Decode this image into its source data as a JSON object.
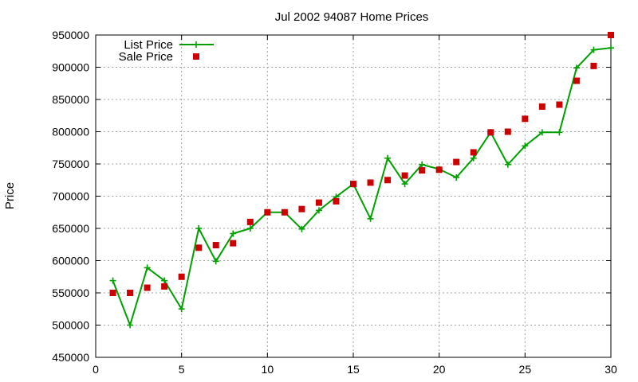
{
  "chart_data": {
    "type": "line",
    "title": "Jul 2002 94087 Home Prices",
    "xlabel": "",
    "ylabel": "Price",
    "xlim": [
      0,
      30
    ],
    "ylim": [
      450000,
      950000
    ],
    "xticks": [
      "0",
      "5",
      "10",
      "15",
      "20",
      "25",
      "30"
    ],
    "yticks": [
      "450000",
      "500000",
      "550000",
      "600000",
      "650000",
      "700000",
      "750000",
      "800000",
      "850000",
      "900000",
      "950000"
    ],
    "grid": true,
    "legend_position": "top-left",
    "colors": {
      "list": "#00a000",
      "sale": "#cc0000"
    },
    "series": [
      {
        "name": "List Price",
        "style": "line-with-plus-markers",
        "x": [
          1,
          2,
          3,
          4,
          5,
          6,
          7,
          8,
          9,
          10,
          11,
          12,
          13,
          14,
          15,
          16,
          17,
          18,
          19,
          20,
          21,
          22,
          23,
          24,
          25,
          26,
          27,
          28,
          29,
          30
        ],
        "values": [
          569000,
          500000,
          589000,
          569000,
          525000,
          650000,
          599000,
          642000,
          650000,
          675000,
          675000,
          649000,
          678000,
          699000,
          719000,
          665000,
          759000,
          719000,
          749000,
          742000,
          729000,
          759000,
          799000,
          749000,
          778000,
          799000,
          799000,
          899000,
          927000,
          930000
        ]
      },
      {
        "name": "Sale Price",
        "style": "square-markers",
        "x": [
          1,
          2,
          3,
          4,
          5,
          6,
          7,
          8,
          9,
          10,
          11,
          12,
          13,
          14,
          15,
          16,
          17,
          18,
          19,
          20,
          21,
          22,
          23,
          24,
          25,
          26,
          27,
          28,
          29,
          30
        ],
        "values": [
          550000,
          550000,
          558000,
          560000,
          575000,
          620000,
          624000,
          627000,
          660000,
          675000,
          675000,
          680000,
          690000,
          692000,
          719000,
          721000,
          725000,
          732000,
          740000,
          741000,
          753000,
          768000,
          799000,
          800000,
          820000,
          839000,
          842000,
          879000,
          902000,
          950000
        ]
      }
    ]
  }
}
